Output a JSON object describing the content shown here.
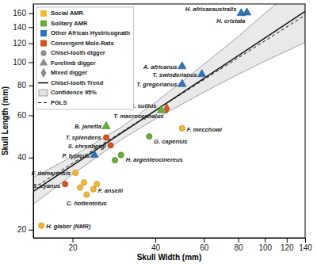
{
  "chart_data": {
    "type": "scatter",
    "x_label": "Skull Width (mm)",
    "y_label": "Skull Length (mm)",
    "log": true,
    "grid": false,
    "legend": "upper left",
    "xlim": [
      14.4,
      140
    ],
    "ylim": [
      18.5,
      175
    ],
    "xticks": [
      20,
      40,
      60,
      80,
      100,
      120,
      140
    ],
    "yticks": [
      20,
      40,
      60,
      80,
      100,
      120,
      140,
      160
    ],
    "series": [
      {
        "name": "Social AMR",
        "color": "#f2b632",
        "markers": [
          "circle",
          "circle",
          "circle",
          "circle",
          "circle",
          "circle",
          "circle",
          "circle"
        ],
        "x": [
          50,
          20.5,
          23.8,
          22.5,
          15.4,
          22,
          24.5,
          21.3
        ],
        "values": [
          53,
          34.5,
          29.5,
          28,
          20.8,
          31.5,
          31,
          30
        ],
        "labels": [
          "F. mecchowi",
          "F. damarensis",
          "F. anselli",
          "C. hottentotus",
          "H. glaber (NMR)",
          null,
          null,
          null
        ]
      },
      {
        "name": "Solitary AMR",
        "color": "#6aab3a",
        "markers": [
          "triangle",
          "triangle",
          "circle",
          "circle",
          "circle"
        ],
        "x": [
          42,
          26.5,
          30,
          38,
          28.5
        ],
        "values": [
          63,
          54,
          41,
          49,
          39
        ],
        "labels": [
          "B. suillus",
          "B. janetta",
          "H. argenteocinereus",
          "G. capensis",
          null
        ]
      },
      {
        "name": "Other African Hystricognath",
        "color": "#2e75b6",
        "markers": [
          "triangle",
          "triangle",
          "triangle",
          "triangle",
          "triangle",
          "triangle"
        ],
        "x": [
          82,
          86,
          50,
          59,
          50,
          24
        ],
        "values": [
          160,
          161,
          96,
          89,
          81,
          41
        ],
        "labels": [
          "H. africaeaustralis",
          "H. cristata",
          "A. africanus",
          "T. swinderianus",
          "T. gregorianus",
          "P. typicus"
        ]
      },
      {
        "name": "Convergent Mole-Rats",
        "color": "#d35420",
        "markers": [
          "diamond",
          "circle",
          "circle",
          "circle"
        ],
        "x": [
          44,
          26.5,
          27.5,
          18.8
        ],
        "values": [
          64,
          48.5,
          45,
          31
        ],
        "labels": [
          "T. macrocephalus",
          "T. splendens",
          "S. ehrenbergi",
          "S. cyanus"
        ]
      }
    ],
    "marker_legend": [
      {
        "name": "Chisel-tooth digger",
        "marker": "circle"
      },
      {
        "name": "Forelimb digger",
        "marker": "triangle"
      },
      {
        "name": "Mixed digger",
        "marker": "diamond"
      }
    ],
    "trend": {
      "name": "Chisel-tooth Trend",
      "x": [
        14.4,
        140
      ],
      "values": [
        28.9,
        163
      ]
    },
    "confidence": {
      "name": "Confidence 95%",
      "x": [
        14.4,
        20,
        30,
        40,
        60,
        80,
        100,
        140
      ],
      "upper": [
        33,
        40.5,
        53.5,
        68,
        98,
        128,
        160,
        220
      ],
      "lower": [
        25.5,
        34,
        47.5,
        58,
        75,
        89,
        101,
        121
      ]
    },
    "pgls": {
      "name": "PGLS",
      "x": [
        14.4,
        140
      ],
      "values": [
        29.8,
        157
      ]
    }
  }
}
